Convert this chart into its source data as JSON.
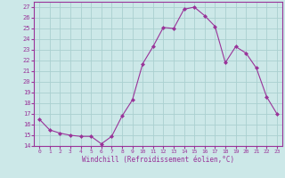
{
  "x": [
    0,
    1,
    2,
    3,
    4,
    5,
    6,
    7,
    8,
    9,
    10,
    11,
    12,
    13,
    14,
    15,
    16,
    17,
    18,
    19,
    20,
    21,
    22,
    23
  ],
  "y": [
    16.5,
    15.5,
    15.2,
    15.0,
    14.9,
    14.9,
    14.2,
    14.9,
    16.8,
    18.3,
    21.7,
    23.3,
    25.1,
    25.0,
    26.8,
    27.0,
    26.2,
    25.2,
    21.8,
    23.3,
    22.7,
    21.3,
    18.6,
    17.0
  ],
  "line_color": "#993399",
  "marker": "D",
  "marker_size": 2,
  "background_color": "#cce8e8",
  "grid_color": "#aad0d0",
  "tick_color": "#993399",
  "label_color": "#993399",
  "xlabel": "Windchill (Refroidissement éolien,°C)",
  "ylim": [
    14,
    27.5
  ],
  "yticks": [
    14,
    15,
    16,
    17,
    18,
    19,
    20,
    21,
    22,
    23,
    24,
    25,
    26,
    27
  ],
  "xticks": [
    0,
    1,
    2,
    3,
    4,
    5,
    6,
    7,
    8,
    9,
    10,
    11,
    12,
    13,
    14,
    15,
    16,
    17,
    18,
    19,
    20,
    21,
    22,
    23
  ],
  "xlim": [
    -0.5,
    23.5
  ]
}
